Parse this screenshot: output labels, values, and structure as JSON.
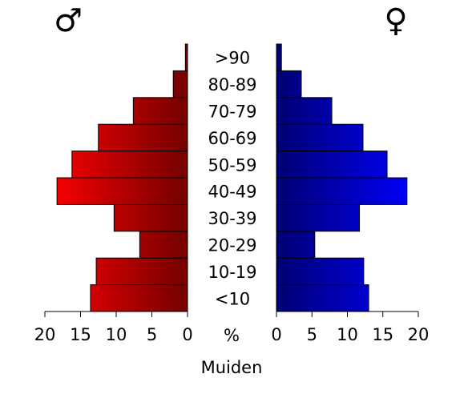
{
  "chart_data": {
    "type": "pyramid",
    "categories": [
      "<10",
      "10-19",
      "20-29",
      "30-39",
      "40-49",
      "50-59",
      "60-69",
      "70-79",
      "80-89",
      ">90"
    ],
    "series": [
      {
        "name": "♂",
        "color": "#ff0000",
        "values": [
          13.6,
          12.8,
          6.7,
          10.3,
          18.3,
          16.2,
          12.5,
          7.6,
          2.0,
          0.3
        ]
      },
      {
        "name": "♀",
        "color": "#0000ff",
        "values": [
          13.0,
          12.3,
          5.4,
          11.7,
          18.4,
          15.6,
          12.2,
          7.8,
          3.5,
          0.7
        ]
      }
    ],
    "xlim": [
      0,
      20
    ],
    "xticks": [
      0,
      5,
      10,
      15,
      20
    ],
    "unit_label": "%",
    "xlabel": "Muiden"
  }
}
